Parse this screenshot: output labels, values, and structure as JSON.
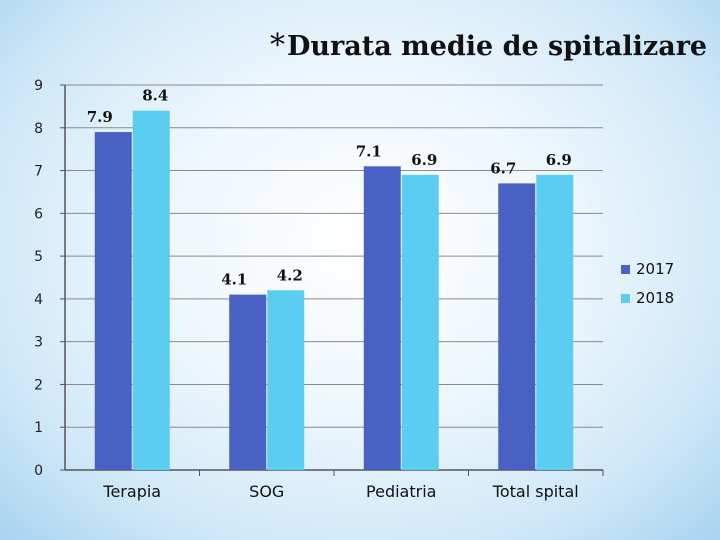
{
  "chart_data": {
    "type": "bar",
    "title": "Durata medie de spitalizare",
    "title_prefix": "*",
    "categories": [
      "Terapia",
      "SOG",
      "Pediatria",
      "Total spital"
    ],
    "series": [
      {
        "name": "2017",
        "color": "#4a61c4",
        "values": [
          7.9,
          4.1,
          7.1,
          6.7
        ],
        "labels": [
          "7.9",
          "4.1",
          "7.1",
          "6.7"
        ]
      },
      {
        "name": "2018",
        "color": "#5bcdf0",
        "values": [
          8.4,
          4.2,
          6.9,
          6.9
        ],
        "labels": [
          "8.4",
          "4.2",
          "6.9",
          "6.9"
        ]
      }
    ],
    "ylim": [
      0,
      9
    ],
    "yticks": [
      "0",
      "1",
      "2",
      "3",
      "4",
      "5",
      "6",
      "7",
      "8",
      "9"
    ],
    "grid": true,
    "legend": "right",
    "xlabel": "",
    "ylabel": ""
  }
}
